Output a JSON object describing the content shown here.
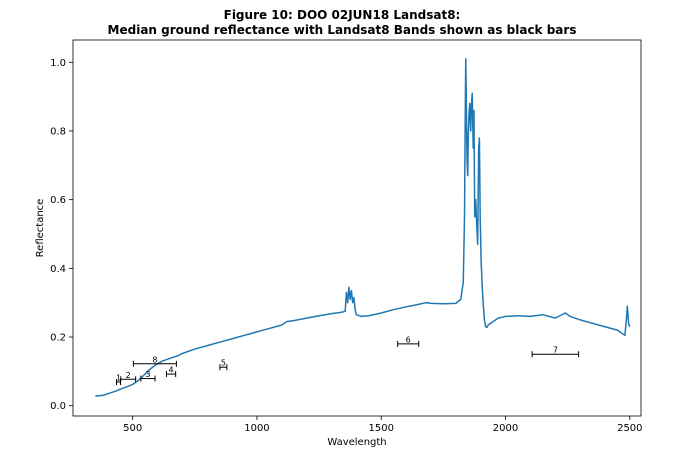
{
  "chart_data": {
    "type": "line",
    "title": "Figure 10: DOO 02JUN18  Landsat8:",
    "subtitle": "Median ground reflectance with Landsat8 Bands shown as black bars",
    "xlabel": "Wavelength",
    "ylabel": "Reflectance",
    "xlim": [
      260,
      2545
    ],
    "ylim": [
      -0.03,
      1.065
    ],
    "xticks": [
      500,
      1000,
      1500,
      2000,
      2500
    ],
    "yticks": [
      0.0,
      0.2,
      0.4,
      0.6,
      0.8,
      1.0
    ],
    "xtick_labels": [
      "500",
      "1000",
      "1500",
      "2000",
      "2500"
    ],
    "ytick_labels": [
      "0.0",
      "0.2",
      "0.4",
      "0.6",
      "0.8",
      "1.0"
    ],
    "grid": false,
    "line_color": "#1f77b4",
    "bar_color": "#000000",
    "series": [
      {
        "x": [
          350,
          380,
          400,
          430,
          450,
          480,
          500,
          520,
          540,
          560,
          580,
          600,
          620,
          650,
          680,
          700,
          750,
          800,
          850,
          900,
          950,
          1000,
          1050,
          1100,
          1120,
          1150,
          1200,
          1250,
          1300,
          1340,
          1355,
          1360,
          1365,
          1370,
          1375,
          1380,
          1385,
          1390,
          1395,
          1400,
          1420,
          1450,
          1500,
          1550,
          1600,
          1650,
          1680,
          1700,
          1750,
          1800,
          1820,
          1830,
          1835,
          1838,
          1840,
          1842,
          1845,
          1848,
          1850,
          1853,
          1856,
          1860,
          1863,
          1866,
          1870,
          1873,
          1876,
          1880,
          1884,
          1888,
          1892,
          1895,
          1898,
          1902,
          1906,
          1910,
          1915,
          1920,
          1925,
          1930,
          1950,
          1970,
          2000,
          2050,
          2100,
          2150,
          2200,
          2240,
          2260,
          2300,
          2350,
          2400,
          2450,
          2470,
          2480,
          2485,
          2490,
          2495,
          2500
        ],
        "y": [
          0.028,
          0.03,
          0.035,
          0.042,
          0.048,
          0.056,
          0.062,
          0.072,
          0.085,
          0.1,
          0.112,
          0.122,
          0.13,
          0.138,
          0.145,
          0.152,
          0.165,
          0.175,
          0.185,
          0.195,
          0.205,
          0.215,
          0.225,
          0.235,
          0.245,
          0.248,
          0.255,
          0.262,
          0.268,
          0.272,
          0.275,
          0.33,
          0.3,
          0.345,
          0.31,
          0.335,
          0.3,
          0.315,
          0.28,
          0.265,
          0.26,
          0.262,
          0.27,
          0.28,
          0.288,
          0.295,
          0.3,
          0.298,
          0.297,
          0.298,
          0.31,
          0.36,
          0.55,
          0.85,
          1.01,
          0.9,
          0.72,
          0.67,
          0.78,
          0.85,
          0.88,
          0.8,
          0.88,
          0.91,
          0.75,
          0.86,
          0.55,
          0.6,
          0.53,
          0.47,
          0.75,
          0.78,
          0.55,
          0.42,
          0.35,
          0.3,
          0.25,
          0.23,
          0.228,
          0.235,
          0.245,
          0.255,
          0.26,
          0.262,
          0.26,
          0.265,
          0.255,
          0.27,
          0.26,
          0.25,
          0.24,
          0.23,
          0.22,
          0.21,
          0.205,
          0.24,
          0.29,
          0.24,
          0.23
        ]
      }
    ],
    "bands": [
      {
        "label": "1",
        "x_start": 435,
        "x_end": 451,
        "y": 0.069
      },
      {
        "label": "2",
        "x_start": 452,
        "x_end": 512,
        "y": 0.077
      },
      {
        "label": "3",
        "x_start": 533,
        "x_end": 590,
        "y": 0.079
      },
      {
        "label": "4",
        "x_start": 636,
        "x_end": 673,
        "y": 0.092
      },
      {
        "label": "5",
        "x_start": 851,
        "x_end": 879,
        "y": 0.112
      },
      {
        "label": "6",
        "x_start": 1566,
        "x_end": 1651,
        "y": 0.18
      },
      {
        "label": "7",
        "x_start": 2107,
        "x_end": 2294,
        "y": 0.15
      },
      {
        "label": "8",
        "x_start": 503,
        "x_end": 676,
        "y": 0.122
      }
    ]
  }
}
